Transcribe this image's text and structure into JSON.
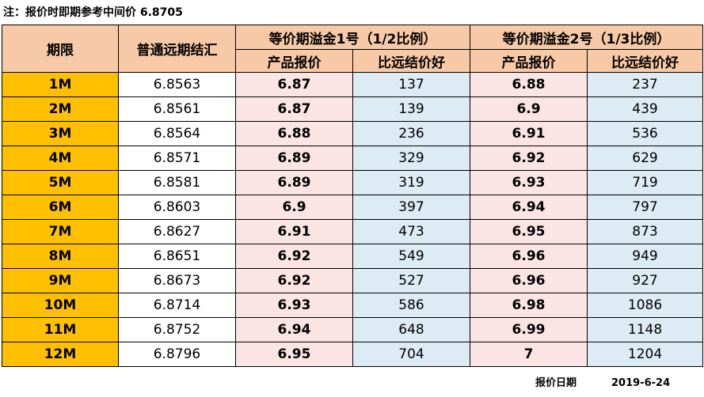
{
  "note": "注：报价时即期参考中间价 6.8705",
  "header": {
    "tenor": "期限",
    "forward": "普通远期结汇",
    "group1": "等价期溢金1号（1/2比例）",
    "group2": "等价期溢金2号（1/3比例）",
    "price": "产品报价",
    "better": "比远结价好"
  },
  "rows": [
    {
      "tenor": "1M",
      "forward": "6.8563",
      "price1": "6.87",
      "better1": "137",
      "price2": "6.88",
      "better2": "237"
    },
    {
      "tenor": "2M",
      "forward": "6.8561",
      "price1": "6.87",
      "better1": "139",
      "price2": "6.9",
      "better2": "439"
    },
    {
      "tenor": "3M",
      "forward": "6.8564",
      "price1": "6.88",
      "better1": "236",
      "price2": "6.91",
      "better2": "536"
    },
    {
      "tenor": "4M",
      "forward": "6.8571",
      "price1": "6.89",
      "better1": "329",
      "price2": "6.92",
      "better2": "629"
    },
    {
      "tenor": "5M",
      "forward": "6.8581",
      "price1": "6.89",
      "better1": "319",
      "price2": "6.93",
      "better2": "719"
    },
    {
      "tenor": "6M",
      "forward": "6.8603",
      "price1": "6.9",
      "better1": "397",
      "price2": "6.94",
      "better2": "797"
    },
    {
      "tenor": "7M",
      "forward": "6.8627",
      "price1": "6.91",
      "better1": "473",
      "price2": "6.95",
      "better2": "873"
    },
    {
      "tenor": "8M",
      "forward": "6.8651",
      "price1": "6.92",
      "better1": "549",
      "price2": "6.96",
      "better2": "949"
    },
    {
      "tenor": "9M",
      "forward": "6.8673",
      "price1": "6.92",
      "better1": "527",
      "price2": "6.96",
      "better2": "927"
    },
    {
      "tenor": "10M",
      "forward": "6.8714",
      "price1": "6.93",
      "better1": "586",
      "price2": "6.98",
      "better2": "1086"
    },
    {
      "tenor": "11M",
      "forward": "6.8752",
      "price1": "6.94",
      "better1": "648",
      "price2": "6.99",
      "better2": "1148"
    },
    {
      "tenor": "12M",
      "forward": "6.8796",
      "price1": "6.95",
      "better1": "704",
      "price2": "7",
      "better2": "1204"
    }
  ],
  "footer": {
    "label": "报价日期",
    "date": "2019-6-24"
  },
  "colors": {
    "header_bg": "#f7c9a6",
    "tenor_bg": "#fec000",
    "price_bg": "#fbe4e4",
    "better_bg": "#dcebf4"
  }
}
